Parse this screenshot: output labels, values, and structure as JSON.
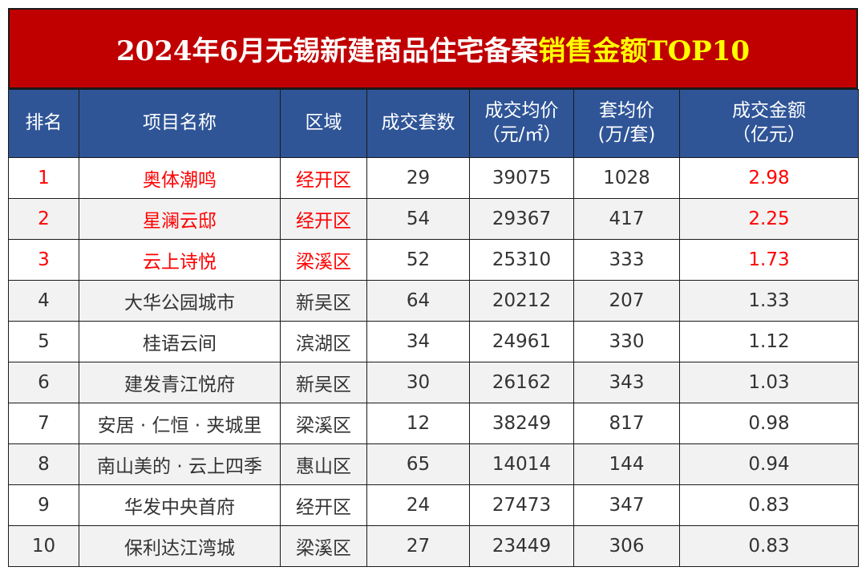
{
  "title": {
    "main": "2024年6月无锡新建商品住宅备案",
    "highlight": "销售金额TOP10"
  },
  "colors": {
    "title_bg": "#c00000",
    "title_highlight": "#ffff00",
    "header_bg": "#2f5597",
    "top_text": "#ff0000"
  },
  "headers": [
    {
      "line1": "排名",
      "line2": ""
    },
    {
      "line1": "项目名称",
      "line2": ""
    },
    {
      "line1": "区域",
      "line2": ""
    },
    {
      "line1": "成交套数",
      "line2": ""
    },
    {
      "line1": "成交均价",
      "line2": "（元/㎡）"
    },
    {
      "line1": "套均价",
      "line2": "(万/套)"
    },
    {
      "line1": "成交金额",
      "line2": "（亿元）"
    }
  ],
  "rows": [
    {
      "rank": "1",
      "name": "奥体潮鸣",
      "district": "经开区",
      "units": "29",
      "avg_price": "39075",
      "unit_price": "1028",
      "amount": "2.98"
    },
    {
      "rank": "2",
      "name": "星澜云邸",
      "district": "经开区",
      "units": "54",
      "avg_price": "29367",
      "unit_price": "417",
      "amount": "2.25"
    },
    {
      "rank": "3",
      "name": "云上诗悦",
      "district": "梁溪区",
      "units": "52",
      "avg_price": "25310",
      "unit_price": "333",
      "amount": "1.73"
    },
    {
      "rank": "4",
      "name": "大华公园城市",
      "district": "新吴区",
      "units": "64",
      "avg_price": "20212",
      "unit_price": "207",
      "amount": "1.33"
    },
    {
      "rank": "5",
      "name": "桂语云间",
      "district": "滨湖区",
      "units": "34",
      "avg_price": "24961",
      "unit_price": "330",
      "amount": "1.12"
    },
    {
      "rank": "6",
      "name": "建发青江悦府",
      "district": "新吴区",
      "units": "30",
      "avg_price": "26162",
      "unit_price": "343",
      "amount": "1.03"
    },
    {
      "rank": "7",
      "name": "安居 · 仁恒 · 夹城里",
      "district": "梁溪区",
      "units": "12",
      "avg_price": "38249",
      "unit_price": "817",
      "amount": "0.98"
    },
    {
      "rank": "8",
      "name": "南山美的 · 云上四季",
      "district": "惠山区",
      "units": "65",
      "avg_price": "14014",
      "unit_price": "144",
      "amount": "0.94"
    },
    {
      "rank": "9",
      "name": "华发中央首府",
      "district": "经开区",
      "units": "24",
      "avg_price": "27473",
      "unit_price": "347",
      "amount": "0.83"
    },
    {
      "rank": "10",
      "name": "保利达江湾城",
      "district": "梁溪区",
      "units": "27",
      "avg_price": "23449",
      "unit_price": "306",
      "amount": "0.83"
    }
  ]
}
